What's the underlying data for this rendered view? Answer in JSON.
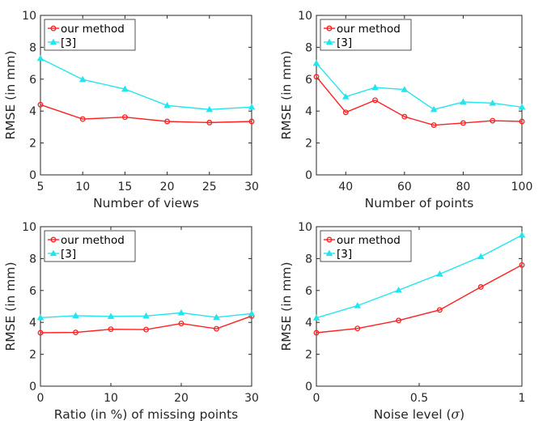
{
  "chart_data": [
    {
      "type": "line",
      "xlabel": "Number of views",
      "ylabel": "RMSE (in mm)",
      "xlim": [
        5,
        30
      ],
      "ylim": [
        0,
        10
      ],
      "xticks": [
        5,
        10,
        15,
        20,
        25,
        30
      ],
      "xtick_labels": [
        "5",
        "10",
        "15",
        "20",
        "25",
        "30"
      ],
      "yticks": [
        0,
        2,
        4,
        6,
        8,
        10
      ],
      "ytick_labels": [
        "0",
        "2",
        "4",
        "6",
        "8",
        "10"
      ],
      "legend_position": "top-left",
      "x": [
        5,
        10,
        15,
        20,
        25,
        30
      ],
      "series": [
        {
          "name": "our method",
          "color": "#ff2020",
          "marker": "circle",
          "values": [
            4.4,
            3.5,
            3.62,
            3.35,
            3.28,
            3.35
          ]
        },
        {
          "name": "[3]",
          "color": "#22e5ee",
          "marker": "triangle",
          "values": [
            7.3,
            5.98,
            5.38,
            4.35,
            4.1,
            4.25
          ]
        }
      ]
    },
    {
      "type": "line",
      "xlabel": "Number of points",
      "ylabel": "RMSE (in mm)",
      "xlim": [
        30,
        100
      ],
      "ylim": [
        0,
        10
      ],
      "xticks": [
        40,
        60,
        80,
        100
      ],
      "xtick_labels": [
        "40",
        "60",
        "80",
        "100"
      ],
      "yticks": [
        0,
        2,
        4,
        6,
        8,
        10
      ],
      "ytick_labels": [
        "0",
        "2",
        "4",
        "6",
        "8",
        "10"
      ],
      "legend_position": "top-left",
      "x": [
        30,
        40,
        50,
        60,
        70,
        80,
        90,
        100
      ],
      "series": [
        {
          "name": "our method",
          "color": "#ff2020",
          "marker": "circle",
          "values": [
            6.15,
            3.92,
            4.68,
            3.65,
            3.12,
            3.25,
            3.4,
            3.35
          ]
        },
        {
          "name": "[3]",
          "color": "#22e5ee",
          "marker": "triangle",
          "values": [
            7.0,
            4.9,
            5.48,
            5.35,
            4.1,
            4.57,
            4.5,
            4.25
          ]
        }
      ]
    },
    {
      "type": "line",
      "xlabel": "Ratio (in %) of missing points",
      "ylabel": "RMSE (in mm)",
      "xlim": [
        0,
        30
      ],
      "ylim": [
        0,
        10
      ],
      "xticks": [
        0,
        10,
        20,
        30
      ],
      "xtick_labels": [
        "0",
        "10",
        "20",
        "30"
      ],
      "yticks": [
        0,
        2,
        4,
        6,
        8,
        10
      ],
      "ytick_labels": [
        "0",
        "2",
        "4",
        "6",
        "8",
        "10"
      ],
      "legend_position": "top-left",
      "x": [
        0,
        5,
        10,
        15,
        20,
        25,
        30
      ],
      "series": [
        {
          "name": "our method",
          "color": "#ff2020",
          "marker": "circle",
          "values": [
            3.35,
            3.37,
            3.57,
            3.55,
            3.93,
            3.6,
            4.4
          ]
        },
        {
          "name": "[3]",
          "color": "#22e5ee",
          "marker": "triangle",
          "values": [
            4.3,
            4.42,
            4.38,
            4.4,
            4.6,
            4.32,
            4.55
          ]
        }
      ]
    },
    {
      "type": "line",
      "xlabel": "Noise level (",
      "xlabel_symbol": "σ",
      "xlabel_suffix": ")",
      "ylabel": "RMSE (in mm)",
      "xlim": [
        0,
        1
      ],
      "ylim": [
        0,
        10
      ],
      "xticks": [
        0,
        0.5,
        1
      ],
      "xtick_labels": [
        "0",
        "0.5",
        "1"
      ],
      "yticks": [
        0,
        2,
        4,
        6,
        8,
        10
      ],
      "ytick_labels": [
        "0",
        "2",
        "4",
        "6",
        "8",
        "10"
      ],
      "legend_position": "top-left",
      "x": [
        0,
        0.2,
        0.4,
        0.6,
        0.8,
        1.0
      ],
      "series": [
        {
          "name": "our method",
          "color": "#ff2020",
          "marker": "circle",
          "values": [
            3.35,
            3.62,
            4.12,
            4.78,
            6.22,
            7.6
          ]
        },
        {
          "name": "[3]",
          "color": "#22e5ee",
          "marker": "triangle",
          "values": [
            4.28,
            5.05,
            6.02,
            7.03,
            8.12,
            9.47
          ]
        }
      ]
    }
  ]
}
